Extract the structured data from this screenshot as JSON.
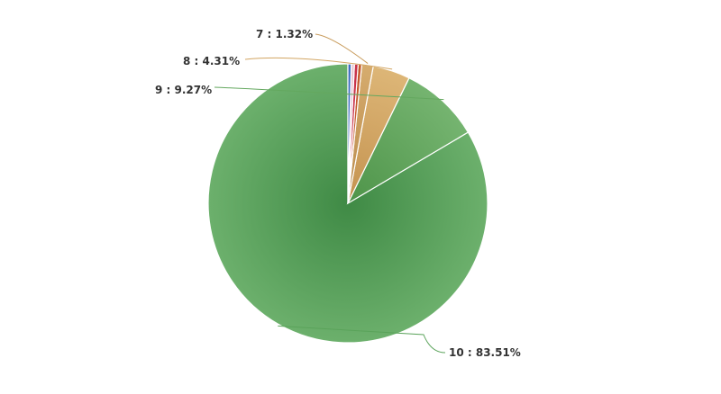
{
  "chart_data": {
    "type": "pie",
    "title": "",
    "start_angle_deg": 0,
    "direction": "counterclockwise",
    "slices": [
      {
        "label": "10 : 83.51%",
        "value": 83.51,
        "color": "#5aa35a",
        "light": "#6cb06c",
        "dark": "#3f8a45"
      },
      {
        "label": "9 : 9.27%",
        "value": 9.27,
        "color": "#64a85f",
        "light": "#75b470",
        "dark": "#4e9449"
      },
      {
        "label": "8 : 4.31%",
        "value": 4.31,
        "color": "#d2a562",
        "light": "#ddb677",
        "dark": "#c4924f"
      },
      {
        "label": "7 : 1.32%",
        "value": 1.32,
        "color": "#c89b5b",
        "light": "#d6ac6e",
        "dark": "#b8894a"
      },
      {
        "label": "",
        "value": 0.42,
        "color": "#c45a2c",
        "light": "#c45a2c",
        "dark": "#c45a2c"
      },
      {
        "label": "",
        "value": 0.42,
        "color": "#c8324a",
        "light": "#c8324a",
        "dark": "#c8324a"
      },
      {
        "label": "",
        "value": 0.37,
        "color": "#e9c7d2",
        "light": "#e9c7d2",
        "dark": "#e9c7d2"
      },
      {
        "label": "",
        "value": 0.38,
        "color": "#3f6fc2",
        "light": "#3f6fc2",
        "dark": "#3f6fc2"
      }
    ]
  }
}
